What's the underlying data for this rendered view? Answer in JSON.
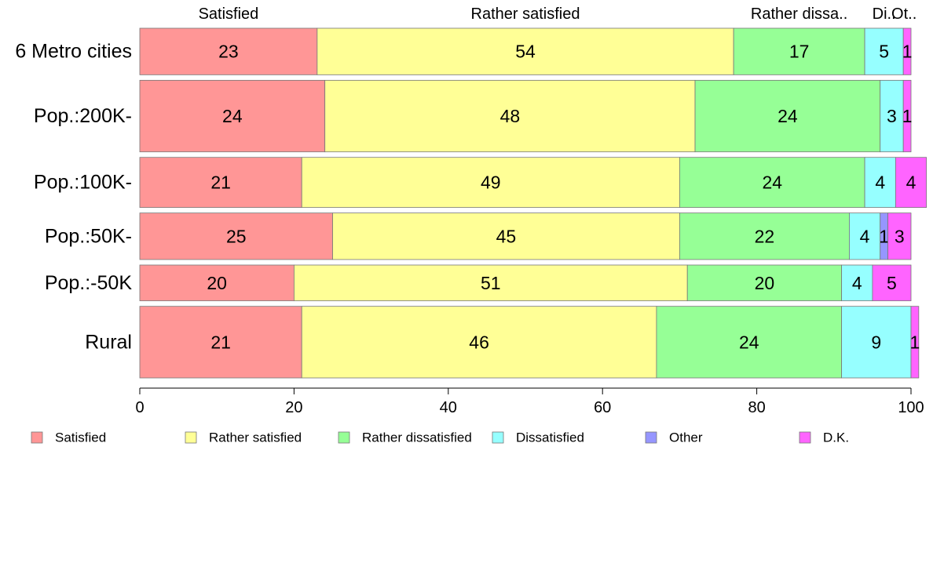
{
  "chart_data": {
    "type": "bar",
    "orientation": "horizontal",
    "stacked": true,
    "percent_stacked": true,
    "categories": [
      "6 Metro cities",
      "Pop.:200K-",
      "Pop.:100K-",
      "Pop.:50K-",
      "Pop.:-50K",
      "Rural"
    ],
    "relative_bar_widths": [
      0.65,
      1.0,
      0.7,
      0.65,
      0.5,
      1.0
    ],
    "series": [
      {
        "name": "Satisfied",
        "color": "#FF9696",
        "values": [
          23,
          24,
          21,
          25,
          20,
          21
        ]
      },
      {
        "name": "Rather satisfied",
        "color": "#FFFF96",
        "values": [
          54,
          48,
          49,
          45,
          51,
          46
        ]
      },
      {
        "name": "Rather dissatisfied",
        "color": "#96FF96",
        "values": [
          17,
          24,
          24,
          22,
          20,
          24
        ]
      },
      {
        "name": "Dissatisfied",
        "color": "#96FFFF",
        "values": [
          5,
          3,
          4,
          4,
          4,
          9
        ]
      },
      {
        "name": "Other",
        "color": "#9696FF",
        "values": [
          0,
          0,
          0,
          1,
          0,
          0
        ]
      },
      {
        "name": "D.K.",
        "color": "#FF64FF",
        "values": [
          1,
          1,
          4,
          3,
          5,
          1
        ]
      }
    ],
    "data_labels": [
      [
        "23",
        "54",
        "17",
        "5",
        "",
        "1"
      ],
      [
        "24",
        "48",
        "24",
        "3",
        "",
        "1"
      ],
      [
        "21",
        "49",
        "24",
        "4",
        "",
        "4"
      ],
      [
        "25",
        "45",
        "22",
        "4",
        "1",
        "3"
      ],
      [
        "20",
        "51",
        "20",
        "4",
        "",
        "5"
      ],
      [
        "21",
        "46",
        "24",
        "9",
        "",
        "1"
      ]
    ],
    "top_labels": [
      "Satisfied",
      "Rather satisfied",
      "Rather dissa..",
      "Di..",
      "Ot.."
    ],
    "xlim": [
      0,
      100
    ],
    "xticks": [
      0,
      20,
      40,
      60,
      80,
      100
    ],
    "xlabel": "",
    "ylabel": "",
    "title": "",
    "grid": false,
    "legend_position": "bottom",
    "legend": [
      "Satisfied",
      "Rather satisfied",
      "Rather dissatisfied",
      "Dissatisfied",
      "Other",
      "D.K."
    ]
  }
}
